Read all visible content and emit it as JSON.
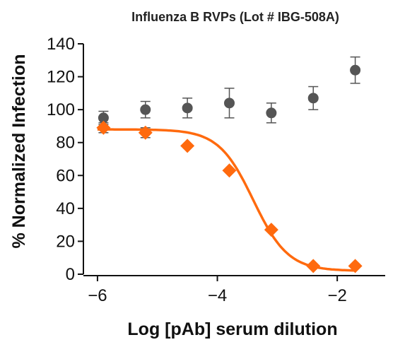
{
  "chart_data": {
    "type": "scatter",
    "title": "Influenza B RVPs (Lot # IBG-508A)",
    "xlabel": "Log [pAb] serum dilution",
    "ylabel": "% Normalized Infection",
    "xlim": [
      -6.4,
      -1.2
    ],
    "ylim": [
      0,
      140
    ],
    "xticks": [
      -6,
      -4,
      -2
    ],
    "yticks": [
      0,
      20,
      40,
      60,
      80,
      100,
      120,
      140
    ],
    "grid": false,
    "series": [
      {
        "marker": "circle",
        "color": "#555555",
        "points": [
          {
            "x": -5.9,
            "y": 95,
            "err": 4
          },
          {
            "x": -5.2,
            "y": 100,
            "err": 5
          },
          {
            "x": -4.5,
            "y": 101,
            "err": 6
          },
          {
            "x": -3.8,
            "y": 104,
            "err": 9
          },
          {
            "x": -3.1,
            "y": 98,
            "err": 6
          },
          {
            "x": -2.4,
            "y": 107,
            "err": 7
          },
          {
            "x": -1.7,
            "y": 124,
            "err": 8
          }
        ]
      },
      {
        "marker": "diamond",
        "color": "#FF6A0E",
        "points": [
          {
            "x": -5.9,
            "y": 89,
            "err": 3
          },
          {
            "x": -5.2,
            "y": 86,
            "err": 3
          },
          {
            "x": -4.5,
            "y": 78,
            "err": 0
          },
          {
            "x": -3.8,
            "y": 63,
            "err": 0
          },
          {
            "x": -3.1,
            "y": 27,
            "err": 0
          },
          {
            "x": -2.4,
            "y": 5,
            "err": 0
          },
          {
            "x": -1.7,
            "y": 5,
            "err": 0
          }
        ],
        "fit": {
          "model": "4PL",
          "top": 88,
          "bottom": 2,
          "log_ic50": -3.4,
          "hill": 1.5,
          "x_range": [
            -6.0,
            -1.7
          ]
        }
      }
    ]
  }
}
